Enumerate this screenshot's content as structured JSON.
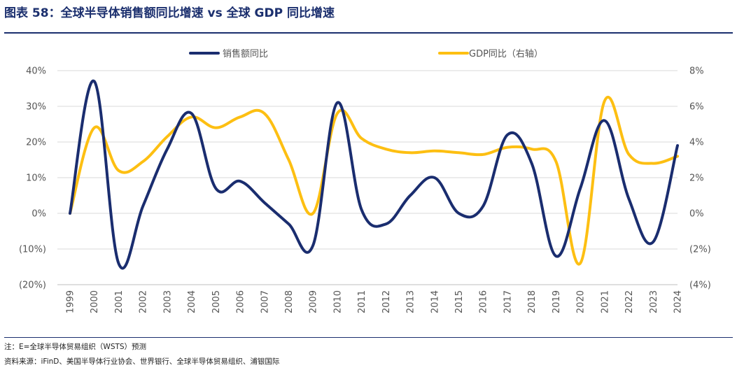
{
  "title": "图表 58：全球半导体销售额同比增速 vs 全球 GDP 同比增速",
  "footnote": "注：E=全球半导体贸易组织（WSTS）预测",
  "source": "资料来源：iFinD、美国半导体行业协会、世界银行、全球半导体贸易组织、浦银国际",
  "colors": {
    "series1": "#1a2d6f",
    "series2": "#fdbf12",
    "title": "#1b2f6e",
    "grid": "#d9d9d9",
    "axis": "#555555"
  },
  "chart_data": {
    "type": "line",
    "categories": [
      "1999",
      "2000",
      "2001",
      "2002",
      "2003",
      "2004",
      "2005",
      "2006",
      "2007",
      "2008",
      "2009",
      "2010",
      "2011",
      "2012",
      "2013",
      "2014",
      "2015",
      "2016",
      "2017",
      "2018",
      "2019",
      "2020",
      "2021",
      "2022",
      "2023",
      "2024"
    ],
    "series": [
      {
        "name": "销售额同比",
        "axis": "left",
        "values": [
          0,
          37,
          -14,
          2,
          18,
          28,
          7,
          9,
          3,
          -3,
          -9,
          31,
          1,
          -3,
          5,
          10,
          0,
          2,
          22,
          14,
          -12,
          7,
          26,
          4,
          -8,
          19
        ]
      },
      {
        "name": "GDP同比（右轴）",
        "axis": "right",
        "values": [
          0,
          4.8,
          2.4,
          2.9,
          4.3,
          5.4,
          4.8,
          5.4,
          5.6,
          3.0,
          0.0,
          5.6,
          4.2,
          3.6,
          3.4,
          3.5,
          3.4,
          3.3,
          3.7,
          3.6,
          2.9,
          -2.8,
          6.3,
          3.3,
          2.8,
          3.2
        ]
      }
    ],
    "y_left": {
      "min": -20,
      "max": 40,
      "step": 10,
      "tick_labels": [
        "(20%)",
        "(10%)",
        "0%",
        "10%",
        "20%",
        "30%",
        "40%"
      ]
    },
    "y_right": {
      "min": -4,
      "max": 8,
      "step": 2,
      "tick_labels": [
        "(4%)",
        "(2%)",
        "0%",
        "2%",
        "4%",
        "6%",
        "8%"
      ]
    },
    "grid": true,
    "legend_position": "top-center"
  }
}
